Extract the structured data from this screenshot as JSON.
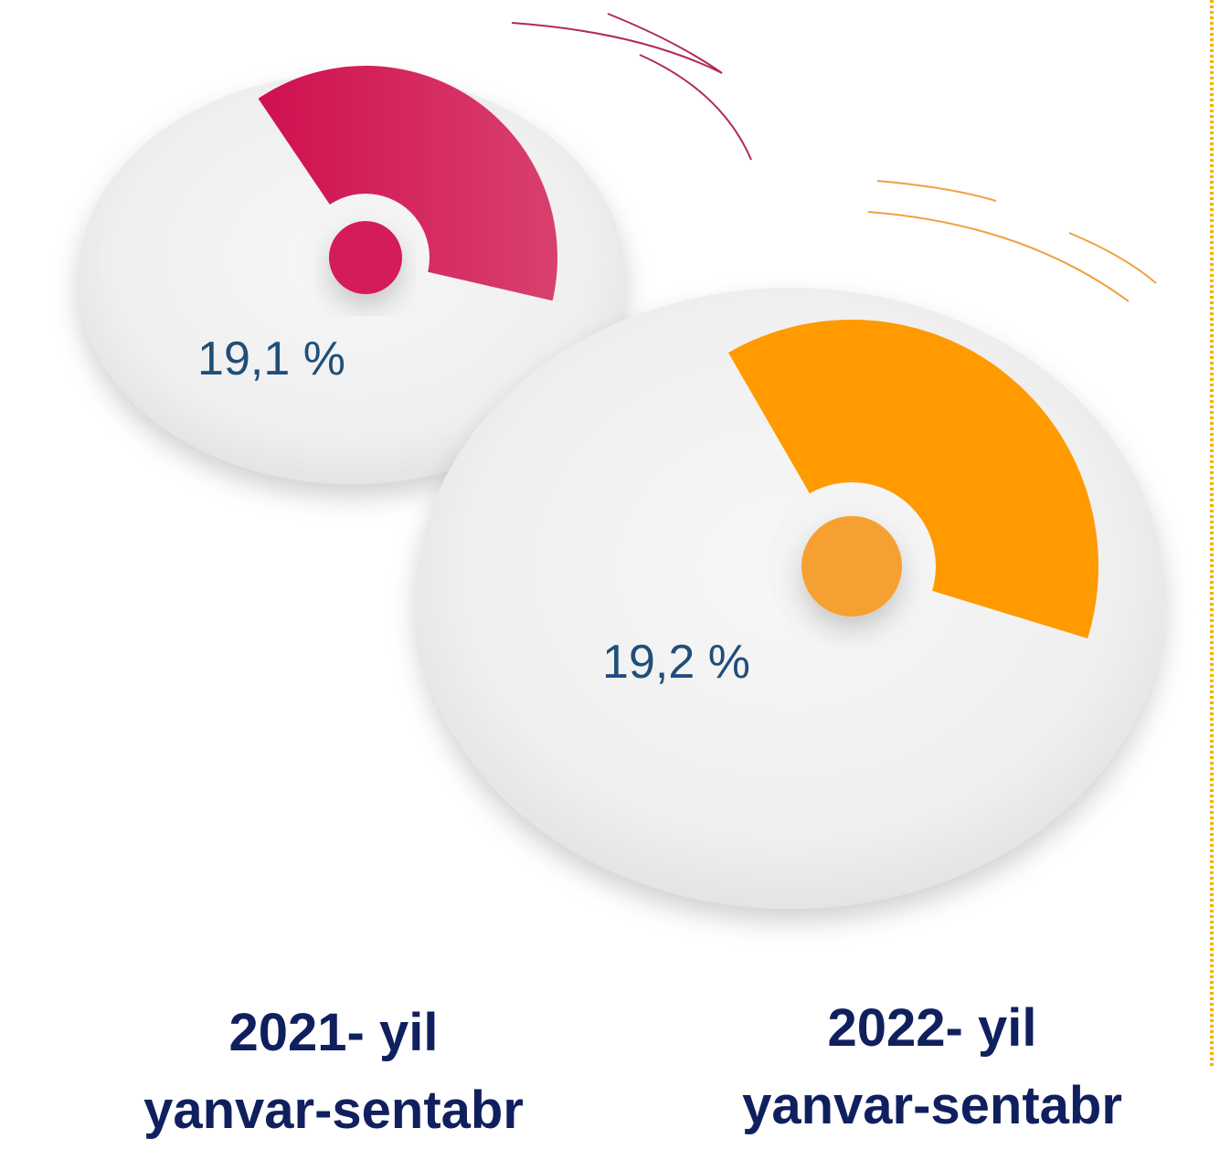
{
  "items": [
    {
      "value_text": "19,1 %",
      "year": "2021- yil",
      "period": "yanvar-sentabr"
    },
    {
      "value_text": "19,2 %",
      "year": "2022- yil",
      "period": "yanvar-sentabr"
    }
  ]
}
